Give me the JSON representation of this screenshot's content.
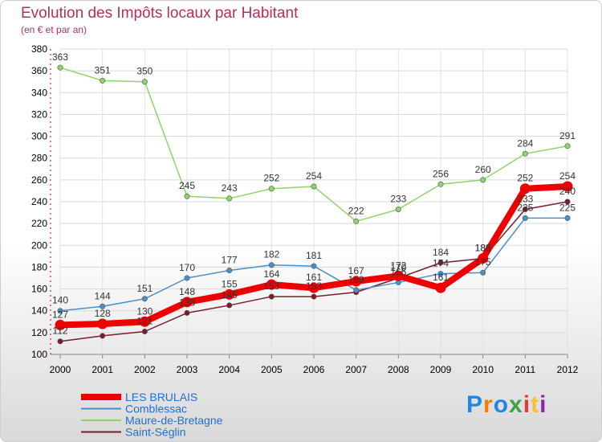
{
  "chart_data": {
    "type": "line",
    "title": "Evolution des Impôts locaux par Habitant",
    "subtitle": "(en € et par an)",
    "categories": [
      "2000",
      "2001",
      "2002",
      "2003",
      "2004",
      "2005",
      "2006",
      "2007",
      "2008",
      "2009",
      "2010",
      "2011",
      "2012"
    ],
    "ylim": [
      100,
      380
    ],
    "yticks": [
      100,
      120,
      140,
      160,
      180,
      200,
      220,
      240,
      260,
      280,
      300,
      320,
      340,
      360,
      380
    ],
    "series": [
      {
        "name": "Saint-Séglin",
        "color": "#7a1d2a",
        "values": [
          112,
          117,
          121,
          138,
          145,
          153,
          153,
          157,
          170,
          184,
          188,
          233,
          240
        ],
        "labels_shown": [
          true,
          false,
          true,
          true,
          true,
          true,
          true,
          false,
          true,
          true,
          true,
          true,
          true
        ]
      },
      {
        "name": "Comblessac",
        "color": "#4a90c8",
        "values": [
          140,
          144,
          151,
          170,
          177,
          182,
          181,
          159,
          166,
          174,
          175,
          225,
          225
        ],
        "labels_shown": [
          true,
          true,
          true,
          true,
          true,
          true,
          true,
          true,
          true,
          true,
          true,
          true,
          true
        ]
      },
      {
        "name": "Maure-de-Bretagne",
        "color": "#8fd46a",
        "values": [
          363,
          351,
          350,
          245,
          243,
          252,
          254,
          222,
          233,
          256,
          260,
          284,
          291
        ],
        "labels_shown": [
          true,
          true,
          true,
          true,
          true,
          true,
          true,
          true,
          true,
          true,
          true,
          true,
          true
        ]
      },
      {
        "name": "LES BRULAIS",
        "color": "#ee0000",
        "values": [
          127,
          128,
          130,
          148,
          155,
          164,
          161,
          167,
          172,
          161,
          188,
          252,
          254
        ],
        "labels_shown": [
          true,
          true,
          true,
          true,
          true,
          true,
          true,
          true,
          true,
          true,
          true,
          true,
          true
        ]
      }
    ],
    "legend": [
      "LES BRULAIS",
      "Comblessac",
      "Maure-de-Bretagne",
      "Saint-Séglin"
    ],
    "legend_position": "bottom-left"
  },
  "brand": {
    "letters": [
      "P",
      "r",
      "o",
      "x",
      "i",
      "t",
      "i"
    ],
    "colors": [
      "#1e88e5",
      "#f57c00",
      "#1e88e5",
      "#43a047",
      "#e53935",
      "#fbc02d",
      "#8e24aa"
    ]
  }
}
